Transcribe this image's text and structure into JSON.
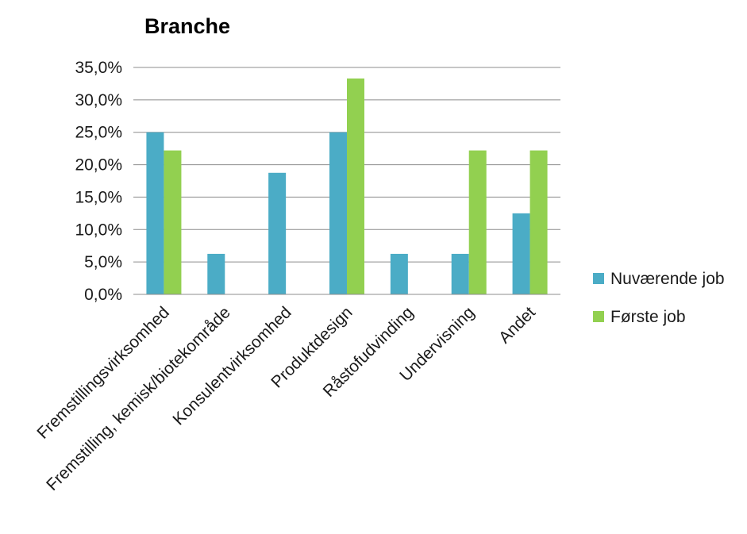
{
  "chart_data": {
    "type": "bar",
    "title": "Branche",
    "categories": [
      "Fremstillingsvirksomhed",
      "Fremstilling, kemisk/biotekområde",
      "Konsulentvirksomhed",
      "Produktdesign",
      "Råstofudvinding",
      "Undervisning",
      "Andet"
    ],
    "series": [
      {
        "name": "Nuværende job",
        "color": "#4bacc6",
        "values": [
          25.0,
          6.25,
          18.75,
          25.0,
          6.25,
          6.25,
          12.5
        ]
      },
      {
        "name": "Første job",
        "color": "#92d050",
        "values": [
          22.2,
          0,
          0,
          33.3,
          0,
          22.2,
          22.2
        ]
      }
    ],
    "yticks": [
      "0,0%",
      "5,0%",
      "10,0%",
      "15,0%",
      "20,0%",
      "25,0%",
      "30,0%",
      "35,0%"
    ],
    "ylim": [
      0,
      35
    ],
    "ystep": 5,
    "grid": true,
    "legend_position": "right"
  }
}
